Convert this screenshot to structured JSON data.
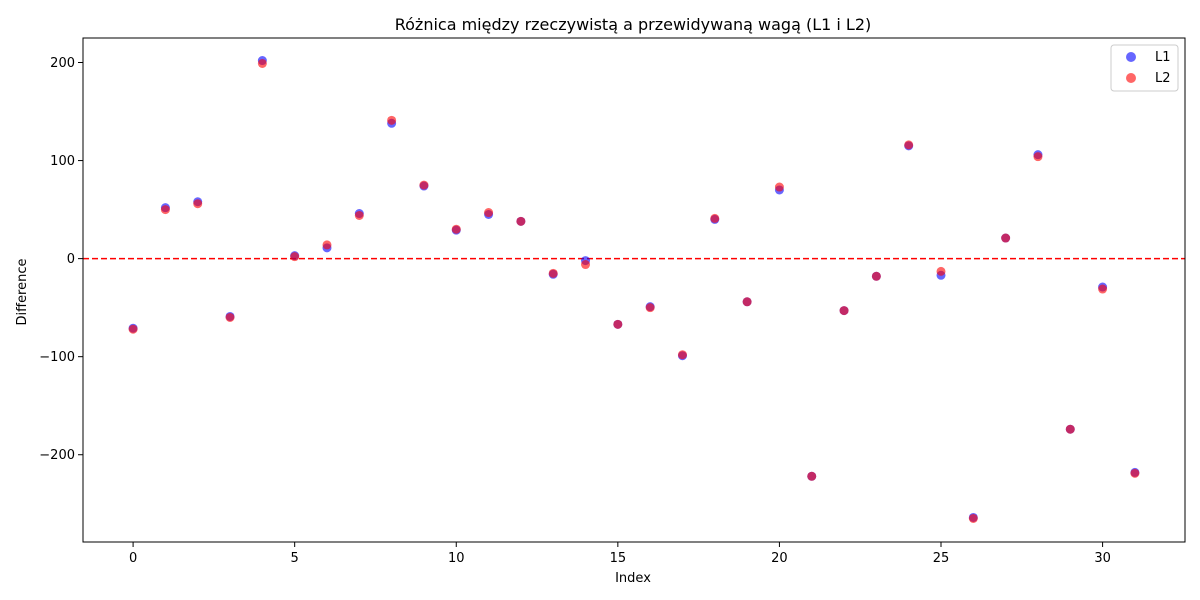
{
  "chart_data": {
    "type": "scatter",
    "title": "Różnica między rzeczywistą a przewidywaną wagą (L1 i L2)",
    "xlabel": "Index",
    "ylabel": "Difference",
    "xlim": [
      -1.55,
      32.55
    ],
    "ylim": [
      -289,
      225
    ],
    "x_ticks": [
      0,
      5,
      10,
      15,
      20,
      25,
      30
    ],
    "y_ticks": [
      -200,
      -100,
      0,
      100,
      200
    ],
    "y_tick_labels": [
      "−200",
      "−100",
      "0",
      "100",
      "200"
    ],
    "grid": false,
    "legend_position": "upper right",
    "reference_line": {
      "y": 0,
      "style": "dashed",
      "color": "#ff0000"
    },
    "x": [
      0,
      1,
      2,
      3,
      4,
      5,
      6,
      7,
      8,
      9,
      10,
      11,
      12,
      13,
      14,
      15,
      16,
      17,
      18,
      19,
      20,
      21,
      22,
      23,
      24,
      25,
      26,
      27,
      28,
      29,
      30,
      31
    ],
    "series": [
      {
        "name": "L1",
        "color": "#0000ff",
        "values": [
          -71,
          52,
          58,
          -59,
          202,
          3,
          11,
          46,
          138,
          74,
          29,
          45,
          38,
          -16,
          -2,
          -67,
          -49,
          -99,
          40,
          -44,
          70,
          -222,
          -53,
          -18,
          115,
          -17,
          -264,
          21,
          106,
          -174,
          -29,
          -218
        ]
      },
      {
        "name": "L2",
        "color": "#ff0000",
        "values": [
          -72,
          50,
          56,
          -60,
          199,
          2,
          14,
          44,
          141,
          75,
          30,
          47,
          38,
          -15,
          -6,
          -67,
          -50,
          -98,
          41,
          -44,
          73,
          -222,
          -53,
          -18,
          116,
          -13,
          -265,
          21,
          104,
          -174,
          -31,
          -219
        ]
      }
    ]
  }
}
